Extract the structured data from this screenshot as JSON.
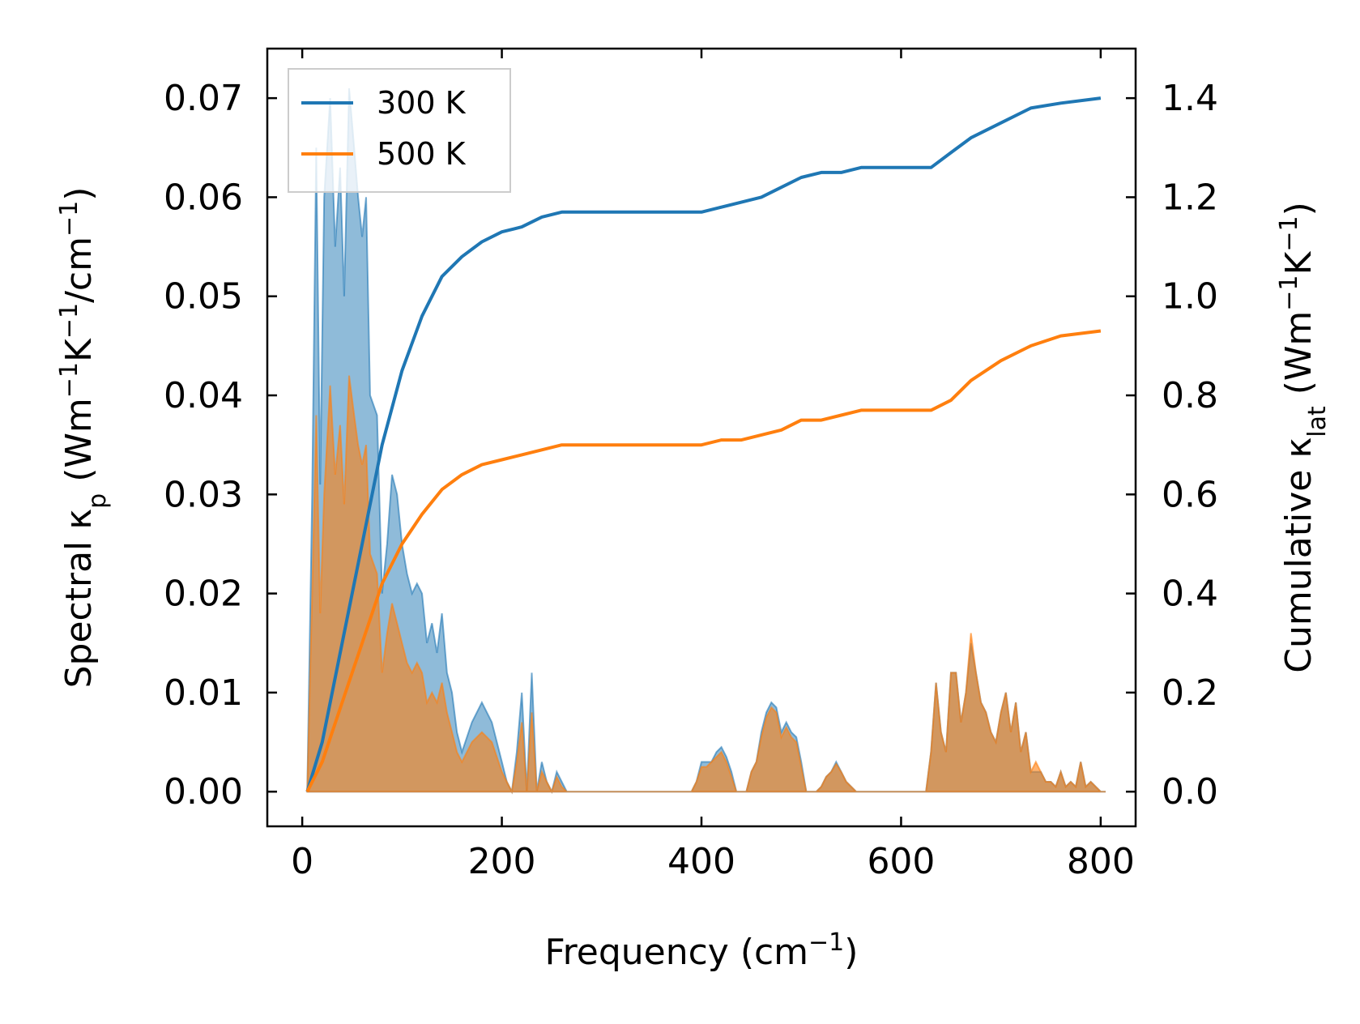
{
  "chart_data": {
    "type": "area",
    "title": "",
    "xlabel": "Frequency (cm⁻¹)",
    "ylabel_left": "Spectral κₚ (Wm⁻¹K⁻¹/cm⁻¹)",
    "ylabel_right": "Cumulative κ_lat (Wm⁻¹K⁻¹)",
    "xlim": [
      -35,
      835
    ],
    "ylim_left": [
      -0.0035,
      0.075
    ],
    "ylim_right": [
      -0.07,
      1.5
    ],
    "xticks": [
      0,
      200,
      400,
      600,
      800
    ],
    "xtick_labels": [
      "0",
      "200",
      "400",
      "600",
      "800"
    ],
    "yticks_left": [
      0.0,
      0.01,
      0.02,
      0.03,
      0.04,
      0.05,
      0.06,
      0.07
    ],
    "ytick_labels_left": [
      "0.00",
      "0.01",
      "0.02",
      "0.03",
      "0.04",
      "0.05",
      "0.06",
      "0.07"
    ],
    "yticks_right": [
      0.0,
      0.2,
      0.4,
      0.6,
      0.8,
      1.0,
      1.2,
      1.4
    ],
    "ytick_labels_right": [
      "0.0",
      "0.2",
      "0.4",
      "0.6",
      "0.8",
      "1.0",
      "1.2",
      "1.4"
    ],
    "legend_position": "top-left",
    "legend": [
      "300 K",
      "500 K"
    ],
    "series": [
      {
        "name": "300 K",
        "color": "#1f77b4",
        "fill_color": "#1f77b4",
        "spectral": [
          [
            5,
            0
          ],
          [
            10,
            0.03
          ],
          [
            14,
            0.065
          ],
          [
            18,
            0.031
          ],
          [
            22,
            0.06
          ],
          [
            28,
            0.07
          ],
          [
            33,
            0.055
          ],
          [
            38,
            0.063
          ],
          [
            42,
            0.05
          ],
          [
            47,
            0.071
          ],
          [
            52,
            0.065
          ],
          [
            56,
            0.06
          ],
          [
            60,
            0.056
          ],
          [
            64,
            0.06
          ],
          [
            68,
            0.04
          ],
          [
            75,
            0.038
          ],
          [
            80,
            0.02
          ],
          [
            85,
            0.025
          ],
          [
            90,
            0.032
          ],
          [
            95,
            0.03
          ],
          [
            100,
            0.025
          ],
          [
            105,
            0.022
          ],
          [
            110,
            0.02
          ],
          [
            115,
            0.021
          ],
          [
            120,
            0.02
          ],
          [
            125,
            0.015
          ],
          [
            130,
            0.017
          ],
          [
            135,
            0.014
          ],
          [
            140,
            0.018
          ],
          [
            145,
            0.012
          ],
          [
            150,
            0.01
          ],
          [
            155,
            0.006
          ],
          [
            160,
            0.004
          ],
          [
            170,
            0.007
          ],
          [
            180,
            0.009
          ],
          [
            190,
            0.007
          ],
          [
            200,
            0.003
          ],
          [
            205,
            0.001
          ],
          [
            210,
            0.0
          ],
          [
            215,
            0.004
          ],
          [
            220,
            0.01
          ],
          [
            225,
            0.0
          ],
          [
            230,
            0.012
          ],
          [
            235,
            0.0
          ],
          [
            240,
            0.003
          ],
          [
            245,
            0.001
          ],
          [
            250,
            0.0
          ],
          [
            255,
            0.002
          ],
          [
            260,
            0.001
          ],
          [
            265,
            0.0
          ],
          [
            300,
            0.0
          ],
          [
            350,
            0.0
          ],
          [
            390,
            0.0
          ],
          [
            395,
            0.001
          ],
          [
            400,
            0.003
          ],
          [
            405,
            0.003
          ],
          [
            410,
            0.003
          ],
          [
            415,
            0.004
          ],
          [
            420,
            0.0045
          ],
          [
            425,
            0.0035
          ],
          [
            430,
            0.002
          ],
          [
            435,
            0.0
          ],
          [
            445,
            0.0
          ],
          [
            450,
            0.002
          ],
          [
            455,
            0.003
          ],
          [
            460,
            0.006
          ],
          [
            465,
            0.008
          ],
          [
            470,
            0.009
          ],
          [
            475,
            0.0085
          ],
          [
            480,
            0.006
          ],
          [
            485,
            0.007
          ],
          [
            490,
            0.006
          ],
          [
            495,
            0.0055
          ],
          [
            500,
            0.003
          ],
          [
            505,
            0.0
          ],
          [
            515,
            0.0
          ],
          [
            520,
            0.0005
          ],
          [
            525,
            0.0015
          ],
          [
            530,
            0.002
          ],
          [
            535,
            0.003
          ],
          [
            540,
            0.002
          ],
          [
            545,
            0.001
          ],
          [
            555,
            0.0
          ],
          [
            600,
            0.0
          ],
          [
            625,
            0.0
          ],
          [
            630,
            0.004
          ],
          [
            635,
            0.011
          ],
          [
            640,
            0.006
          ],
          [
            645,
            0.004
          ],
          [
            650,
            0.012
          ],
          [
            655,
            0.012
          ],
          [
            660,
            0.007
          ],
          [
            665,
            0.01
          ],
          [
            670,
            0.015
          ],
          [
            675,
            0.012
          ],
          [
            680,
            0.009
          ],
          [
            685,
            0.008
          ],
          [
            690,
            0.006
          ],
          [
            695,
            0.005
          ],
          [
            700,
            0.008
          ],
          [
            705,
            0.01
          ],
          [
            710,
            0.006
          ],
          [
            715,
            0.009
          ],
          [
            720,
            0.004
          ],
          [
            725,
            0.006
          ],
          [
            730,
            0.002
          ],
          [
            735,
            0.002
          ],
          [
            740,
            0.002
          ],
          [
            745,
            0.001
          ],
          [
            750,
            0.001
          ],
          [
            755,
            0.0005
          ],
          [
            760,
            0.002
          ],
          [
            765,
            0.0005
          ],
          [
            770,
            0.001
          ],
          [
            775,
            0.0005
          ],
          [
            780,
            0.003
          ],
          [
            785,
            0.0005
          ],
          [
            790,
            0.001
          ],
          [
            795,
            0.0005
          ],
          [
            800,
            0.0
          ],
          [
            805,
            0.0
          ]
        ],
        "cumulative": [
          [
            5,
            0.0
          ],
          [
            20,
            0.1
          ],
          [
            40,
            0.3
          ],
          [
            60,
            0.5
          ],
          [
            80,
            0.7
          ],
          [
            100,
            0.85
          ],
          [
            120,
            0.96
          ],
          [
            140,
            1.04
          ],
          [
            160,
            1.08
          ],
          [
            180,
            1.11
          ],
          [
            200,
            1.13
          ],
          [
            220,
            1.14
          ],
          [
            240,
            1.16
          ],
          [
            260,
            1.17
          ],
          [
            300,
            1.17
          ],
          [
            400,
            1.17
          ],
          [
            420,
            1.18
          ],
          [
            440,
            1.19
          ],
          [
            460,
            1.2
          ],
          [
            480,
            1.22
          ],
          [
            500,
            1.24
          ],
          [
            520,
            1.25
          ],
          [
            540,
            1.25
          ],
          [
            560,
            1.26
          ],
          [
            600,
            1.26
          ],
          [
            630,
            1.26
          ],
          [
            650,
            1.29
          ],
          [
            670,
            1.32
          ],
          [
            700,
            1.35
          ],
          [
            730,
            1.38
          ],
          [
            760,
            1.39
          ],
          [
            800,
            1.4
          ]
        ]
      },
      {
        "name": "500 K",
        "color": "#ff7f0e",
        "fill_color": "#ff7f0e",
        "spectral": [
          [
            5,
            0
          ],
          [
            10,
            0.02
          ],
          [
            14,
            0.038
          ],
          [
            18,
            0.018
          ],
          [
            22,
            0.03
          ],
          [
            28,
            0.041
          ],
          [
            33,
            0.032
          ],
          [
            38,
            0.037
          ],
          [
            42,
            0.029
          ],
          [
            47,
            0.042
          ],
          [
            52,
            0.038
          ],
          [
            56,
            0.035
          ],
          [
            60,
            0.033
          ],
          [
            64,
            0.035
          ],
          [
            68,
            0.024
          ],
          [
            75,
            0.022
          ],
          [
            80,
            0.012
          ],
          [
            85,
            0.016
          ],
          [
            90,
            0.019
          ],
          [
            95,
            0.017
          ],
          [
            100,
            0.015
          ],
          [
            105,
            0.013
          ],
          [
            110,
            0.012
          ],
          [
            115,
            0.013
          ],
          [
            120,
            0.012
          ],
          [
            125,
            0.009
          ],
          [
            130,
            0.01
          ],
          [
            135,
            0.009
          ],
          [
            140,
            0.011
          ],
          [
            145,
            0.008
          ],
          [
            150,
            0.006
          ],
          [
            155,
            0.004
          ],
          [
            160,
            0.003
          ],
          [
            170,
            0.005
          ],
          [
            180,
            0.006
          ],
          [
            190,
            0.005
          ],
          [
            200,
            0.002
          ],
          [
            205,
            0.001
          ],
          [
            210,
            0.0
          ],
          [
            215,
            0.003
          ],
          [
            220,
            0.007
          ],
          [
            225,
            0.0
          ],
          [
            230,
            0.008
          ],
          [
            235,
            0.0
          ],
          [
            240,
            0.002
          ],
          [
            245,
            0.001
          ],
          [
            250,
            0.0
          ],
          [
            255,
            0.0015
          ],
          [
            260,
            0.0005
          ],
          [
            265,
            0.0
          ],
          [
            300,
            0.0
          ],
          [
            350,
            0.0
          ],
          [
            390,
            0.0
          ],
          [
            395,
            0.001
          ],
          [
            400,
            0.0025
          ],
          [
            405,
            0.0025
          ],
          [
            410,
            0.003
          ],
          [
            415,
            0.0035
          ],
          [
            420,
            0.004
          ],
          [
            425,
            0.003
          ],
          [
            430,
            0.0015
          ],
          [
            435,
            0.0
          ],
          [
            445,
            0.0
          ],
          [
            450,
            0.002
          ],
          [
            455,
            0.003
          ],
          [
            460,
            0.0055
          ],
          [
            465,
            0.0075
          ],
          [
            470,
            0.0085
          ],
          [
            475,
            0.008
          ],
          [
            480,
            0.0055
          ],
          [
            485,
            0.0065
          ],
          [
            490,
            0.0055
          ],
          [
            495,
            0.005
          ],
          [
            500,
            0.0025
          ],
          [
            505,
            0.0
          ],
          [
            515,
            0.0
          ],
          [
            520,
            0.0005
          ],
          [
            525,
            0.0015
          ],
          [
            530,
            0.002
          ],
          [
            535,
            0.0028
          ],
          [
            540,
            0.002
          ],
          [
            545,
            0.001
          ],
          [
            555,
            0.0
          ],
          [
            600,
            0.0
          ],
          [
            625,
            0.0
          ],
          [
            630,
            0.004
          ],
          [
            635,
            0.011
          ],
          [
            640,
            0.006
          ],
          [
            645,
            0.004
          ],
          [
            650,
            0.012
          ],
          [
            655,
            0.012
          ],
          [
            660,
            0.007
          ],
          [
            665,
            0.01
          ],
          [
            670,
            0.016
          ],
          [
            675,
            0.012
          ],
          [
            680,
            0.009
          ],
          [
            685,
            0.008
          ],
          [
            690,
            0.006
          ],
          [
            695,
            0.005
          ],
          [
            700,
            0.008
          ],
          [
            705,
            0.01
          ],
          [
            710,
            0.006
          ],
          [
            715,
            0.009
          ],
          [
            720,
            0.004
          ],
          [
            725,
            0.006
          ],
          [
            730,
            0.002
          ],
          [
            735,
            0.003
          ],
          [
            740,
            0.002
          ],
          [
            745,
            0.001
          ],
          [
            750,
            0.001
          ],
          [
            755,
            0.0005
          ],
          [
            760,
            0.002
          ],
          [
            765,
            0.0005
          ],
          [
            770,
            0.001
          ],
          [
            775,
            0.0005
          ],
          [
            780,
            0.003
          ],
          [
            785,
            0.0005
          ],
          [
            790,
            0.001
          ],
          [
            795,
            0.0005
          ],
          [
            800,
            0.0
          ],
          [
            805,
            0.0
          ]
        ],
        "cumulative": [
          [
            5,
            0.0
          ],
          [
            20,
            0.06
          ],
          [
            40,
            0.18
          ],
          [
            60,
            0.3
          ],
          [
            80,
            0.42
          ],
          [
            100,
            0.5
          ],
          [
            120,
            0.56
          ],
          [
            140,
            0.61
          ],
          [
            160,
            0.64
          ],
          [
            180,
            0.66
          ],
          [
            200,
            0.67
          ],
          [
            220,
            0.68
          ],
          [
            240,
            0.69
          ],
          [
            260,
            0.7
          ],
          [
            300,
            0.7
          ],
          [
            400,
            0.7
          ],
          [
            420,
            0.71
          ],
          [
            440,
            0.71
          ],
          [
            460,
            0.72
          ],
          [
            480,
            0.73
          ],
          [
            500,
            0.75
          ],
          [
            520,
            0.75
          ],
          [
            540,
            0.76
          ],
          [
            560,
            0.77
          ],
          [
            600,
            0.77
          ],
          [
            630,
            0.77
          ],
          [
            650,
            0.79
          ],
          [
            670,
            0.83
          ],
          [
            700,
            0.87
          ],
          [
            730,
            0.9
          ],
          [
            760,
            0.92
          ],
          [
            800,
            0.93
          ]
        ]
      }
    ]
  }
}
